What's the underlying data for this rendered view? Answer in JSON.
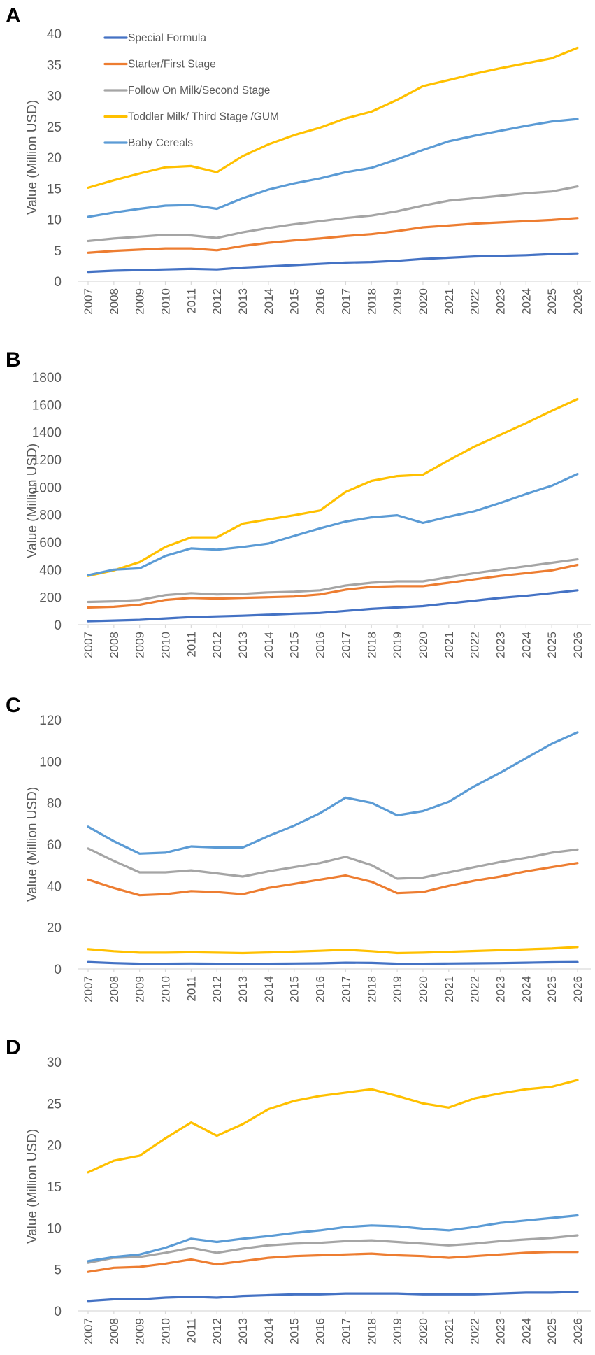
{
  "colors": {
    "Special Formula": "#4472c4",
    "Starter/First Stage": "#ed7d31",
    "Follow On Milk/Second Stage": "#a5a5a5",
    "Toddler Milk/ Third Stage /GUM": "#ffc000",
    "Baby Cereals": "#5b9bd5"
  },
  "chart_data": [
    {
      "panel": "A",
      "type": "line",
      "ylabel": "Value (Million USD)",
      "xlabel": "",
      "ylim": [
        0,
        40
      ],
      "yticks": [
        0,
        5,
        10,
        15,
        20,
        25,
        30,
        35,
        40
      ],
      "legend": [
        "Special Formula",
        "Starter/First Stage",
        "Follow On Milk/Second Stage",
        "Toddler Milk/ Third Stage /GUM",
        "Baby Cereals"
      ],
      "legend_position": "top-left",
      "categories": [
        "2007",
        "2008",
        "2009",
        "2010",
        "2011",
        "2012",
        "2013",
        "2014",
        "2015",
        "2016",
        "2017",
        "2018",
        "2019",
        "2020",
        "2021",
        "2022",
        "2023",
        "2024",
        "2025",
        "2026"
      ],
      "series": [
        {
          "name": "Special Formula",
          "values": [
            1.5,
            1.7,
            1.8,
            1.9,
            2.0,
            1.9,
            2.2,
            2.4,
            2.6,
            2.8,
            3.0,
            3.1,
            3.3,
            3.6,
            3.8,
            4.0,
            4.1,
            4.2,
            4.4,
            4.5
          ]
        },
        {
          "name": "Starter/First Stage",
          "values": [
            4.6,
            4.9,
            5.1,
            5.3,
            5.3,
            5.0,
            5.7,
            6.2,
            6.6,
            6.9,
            7.3,
            7.6,
            8.1,
            8.7,
            9.0,
            9.3,
            9.5,
            9.7,
            9.9,
            10.2
          ]
        },
        {
          "name": "Follow On Milk/Second Stage",
          "values": [
            6.5,
            6.9,
            7.2,
            7.5,
            7.4,
            7.0,
            7.9,
            8.6,
            9.2,
            9.7,
            10.2,
            10.6,
            11.3,
            12.2,
            13.0,
            13.4,
            13.8,
            14.2,
            14.5,
            15.3
          ]
        },
        {
          "name": "Toddler Milk/ Third Stage /GUM",
          "values": [
            15.1,
            16.3,
            17.4,
            18.4,
            18.6,
            17.6,
            20.2,
            22.1,
            23.6,
            24.8,
            26.3,
            27.4,
            29.3,
            31.5,
            32.5,
            33.5,
            34.4,
            35.2,
            36.0,
            37.7
          ]
        },
        {
          "name": "Baby Cereals",
          "values": [
            10.4,
            11.1,
            11.7,
            12.2,
            12.3,
            11.7,
            13.4,
            14.8,
            15.8,
            16.6,
            17.6,
            18.3,
            19.7,
            21.2,
            22.6,
            23.5,
            24.3,
            25.1,
            25.8,
            26.2
          ]
        }
      ]
    },
    {
      "panel": "B",
      "type": "line",
      "ylabel": "Value (Million USD)",
      "xlabel": "",
      "ylim": [
        0,
        1800
      ],
      "yticks": [
        0,
        200,
        400,
        600,
        800,
        1000,
        1200,
        1400,
        1600,
        1800
      ],
      "categories": [
        "2007",
        "2008",
        "2009",
        "2010",
        "2011",
        "2012",
        "2013",
        "2014",
        "2015",
        "2016",
        "2017",
        "2018",
        "2019",
        "2020",
        "2021",
        "2022",
        "2023",
        "2024",
        "2025",
        "2026"
      ],
      "series": [
        {
          "name": "Special Formula",
          "values": [
            25,
            30,
            35,
            45,
            55,
            60,
            65,
            72,
            80,
            85,
            100,
            115,
            125,
            135,
            155,
            175,
            195,
            210,
            230,
            250
          ]
        },
        {
          "name": "Starter/First Stage",
          "values": [
            125,
            130,
            145,
            180,
            195,
            190,
            195,
            200,
            205,
            220,
            255,
            275,
            280,
            280,
            305,
            330,
            355,
            375,
            395,
            435
          ]
        },
        {
          "name": "Follow On Milk/Second Stage",
          "values": [
            165,
            170,
            180,
            215,
            230,
            220,
            225,
            235,
            240,
            250,
            285,
            305,
            315,
            315,
            345,
            375,
            400,
            425,
            450,
            475
          ]
        },
        {
          "name": "Toddler Milk/ Third Stage /GUM",
          "values": [
            355,
            395,
            455,
            565,
            635,
            635,
            735,
            765,
            795,
            830,
            965,
            1045,
            1080,
            1090,
            1195,
            1295,
            1380,
            1465,
            1555,
            1640
          ]
        },
        {
          "name": "Baby Cereals",
          "values": [
            360,
            400,
            410,
            500,
            555,
            545,
            565,
            590,
            645,
            700,
            750,
            780,
            795,
            740,
            785,
            825,
            885,
            950,
            1010,
            1095
          ]
        }
      ]
    },
    {
      "panel": "C",
      "type": "line",
      "ylabel": "Value (Million USD)",
      "xlabel": "",
      "ylim": [
        0,
        120
      ],
      "yticks": [
        0,
        20,
        40,
        60,
        80,
        100,
        120
      ],
      "categories": [
        "2007",
        "2008",
        "2009",
        "2010",
        "2011",
        "2012",
        "2013",
        "2014",
        "2015",
        "2016",
        "2017",
        "2018",
        "2019",
        "2020",
        "2021",
        "2022",
        "2023",
        "2024",
        "2025",
        "2026"
      ],
      "series": [
        {
          "name": "Special Formula",
          "values": [
            3.3,
            2.8,
            2.5,
            2.5,
            2.6,
            2.5,
            2.4,
            2.5,
            2.6,
            2.7,
            3.0,
            2.9,
            2.5,
            2.5,
            2.6,
            2.7,
            2.8,
            3.0,
            3.2,
            3.3
          ]
        },
        {
          "name": "Starter/First Stage",
          "values": [
            43,
            39,
            35.5,
            36,
            37.5,
            37,
            36,
            39,
            41,
            43,
            45,
            42,
            36.5,
            37,
            40,
            42.5,
            44.5,
            47,
            49,
            51
          ]
        },
        {
          "name": "Follow On Milk/Second Stage",
          "values": [
            58,
            52,
            46.5,
            46.5,
            47.5,
            46,
            44.5,
            47,
            49,
            51,
            54,
            50,
            43.5,
            44,
            46.5,
            49,
            51.5,
            53.5,
            56,
            57.5
          ]
        },
        {
          "name": "Toddler Milk/ Third Stage /GUM",
          "values": [
            9.5,
            8.5,
            7.8,
            7.8,
            8.0,
            7.8,
            7.6,
            7.9,
            8.3,
            8.7,
            9.2,
            8.5,
            7.6,
            7.8,
            8.2,
            8.6,
            9.0,
            9.4,
            9.8,
            10.5
          ]
        },
        {
          "name": "Baby Cereals",
          "values": [
            68.5,
            61.5,
            55.5,
            56,
            59,
            58.5,
            58.5,
            64,
            69,
            75,
            82.5,
            80,
            74,
            76,
            80.5,
            88,
            94.5,
            101.5,
            108.5,
            114
          ]
        }
      ]
    },
    {
      "panel": "D",
      "type": "line",
      "ylabel": "Value (Million USD)",
      "xlabel": "",
      "ylim": [
        0,
        30
      ],
      "yticks": [
        0,
        5,
        10,
        15,
        20,
        25,
        30
      ],
      "categories": [
        "2007",
        "2008",
        "2009",
        "2010",
        "2011",
        "2012",
        "2013",
        "2014",
        "2015",
        "2016",
        "2017",
        "2018",
        "2019",
        "2020",
        "2021",
        "2022",
        "2023",
        "2024",
        "2025",
        "2026"
      ],
      "series": [
        {
          "name": "Special Formula",
          "values": [
            1.2,
            1.4,
            1.4,
            1.6,
            1.7,
            1.6,
            1.8,
            1.9,
            2.0,
            2.0,
            2.1,
            2.1,
            2.1,
            2.0,
            2.0,
            2.0,
            2.1,
            2.2,
            2.2,
            2.3
          ]
        },
        {
          "name": "Starter/First Stage",
          "values": [
            4.7,
            5.2,
            5.3,
            5.7,
            6.2,
            5.6,
            6.0,
            6.4,
            6.6,
            6.7,
            6.8,
            6.9,
            6.7,
            6.6,
            6.4,
            6.6,
            6.8,
            7.0,
            7.1,
            7.1
          ]
        },
        {
          "name": "Follow On Milk/Second Stage",
          "values": [
            5.8,
            6.4,
            6.5,
            7.0,
            7.6,
            7.0,
            7.5,
            7.9,
            8.1,
            8.2,
            8.4,
            8.5,
            8.3,
            8.1,
            7.9,
            8.1,
            8.4,
            8.6,
            8.8,
            9.1
          ]
        },
        {
          "name": "Toddler Milk/ Third Stage /GUM",
          "values": [
            16.7,
            18.1,
            18.7,
            20.8,
            22.7,
            21.1,
            22.5,
            24.3,
            25.3,
            25.9,
            26.3,
            26.7,
            25.9,
            25.0,
            24.5,
            25.6,
            26.2,
            26.7,
            27.0,
            27.8
          ]
        },
        {
          "name": "Baby Cereals",
          "values": [
            6.0,
            6.5,
            6.8,
            7.6,
            8.7,
            8.3,
            8.7,
            9.0,
            9.4,
            9.7,
            10.1,
            10.3,
            10.2,
            9.9,
            9.7,
            10.1,
            10.6,
            10.9,
            11.2,
            11.5
          ]
        }
      ]
    }
  ]
}
